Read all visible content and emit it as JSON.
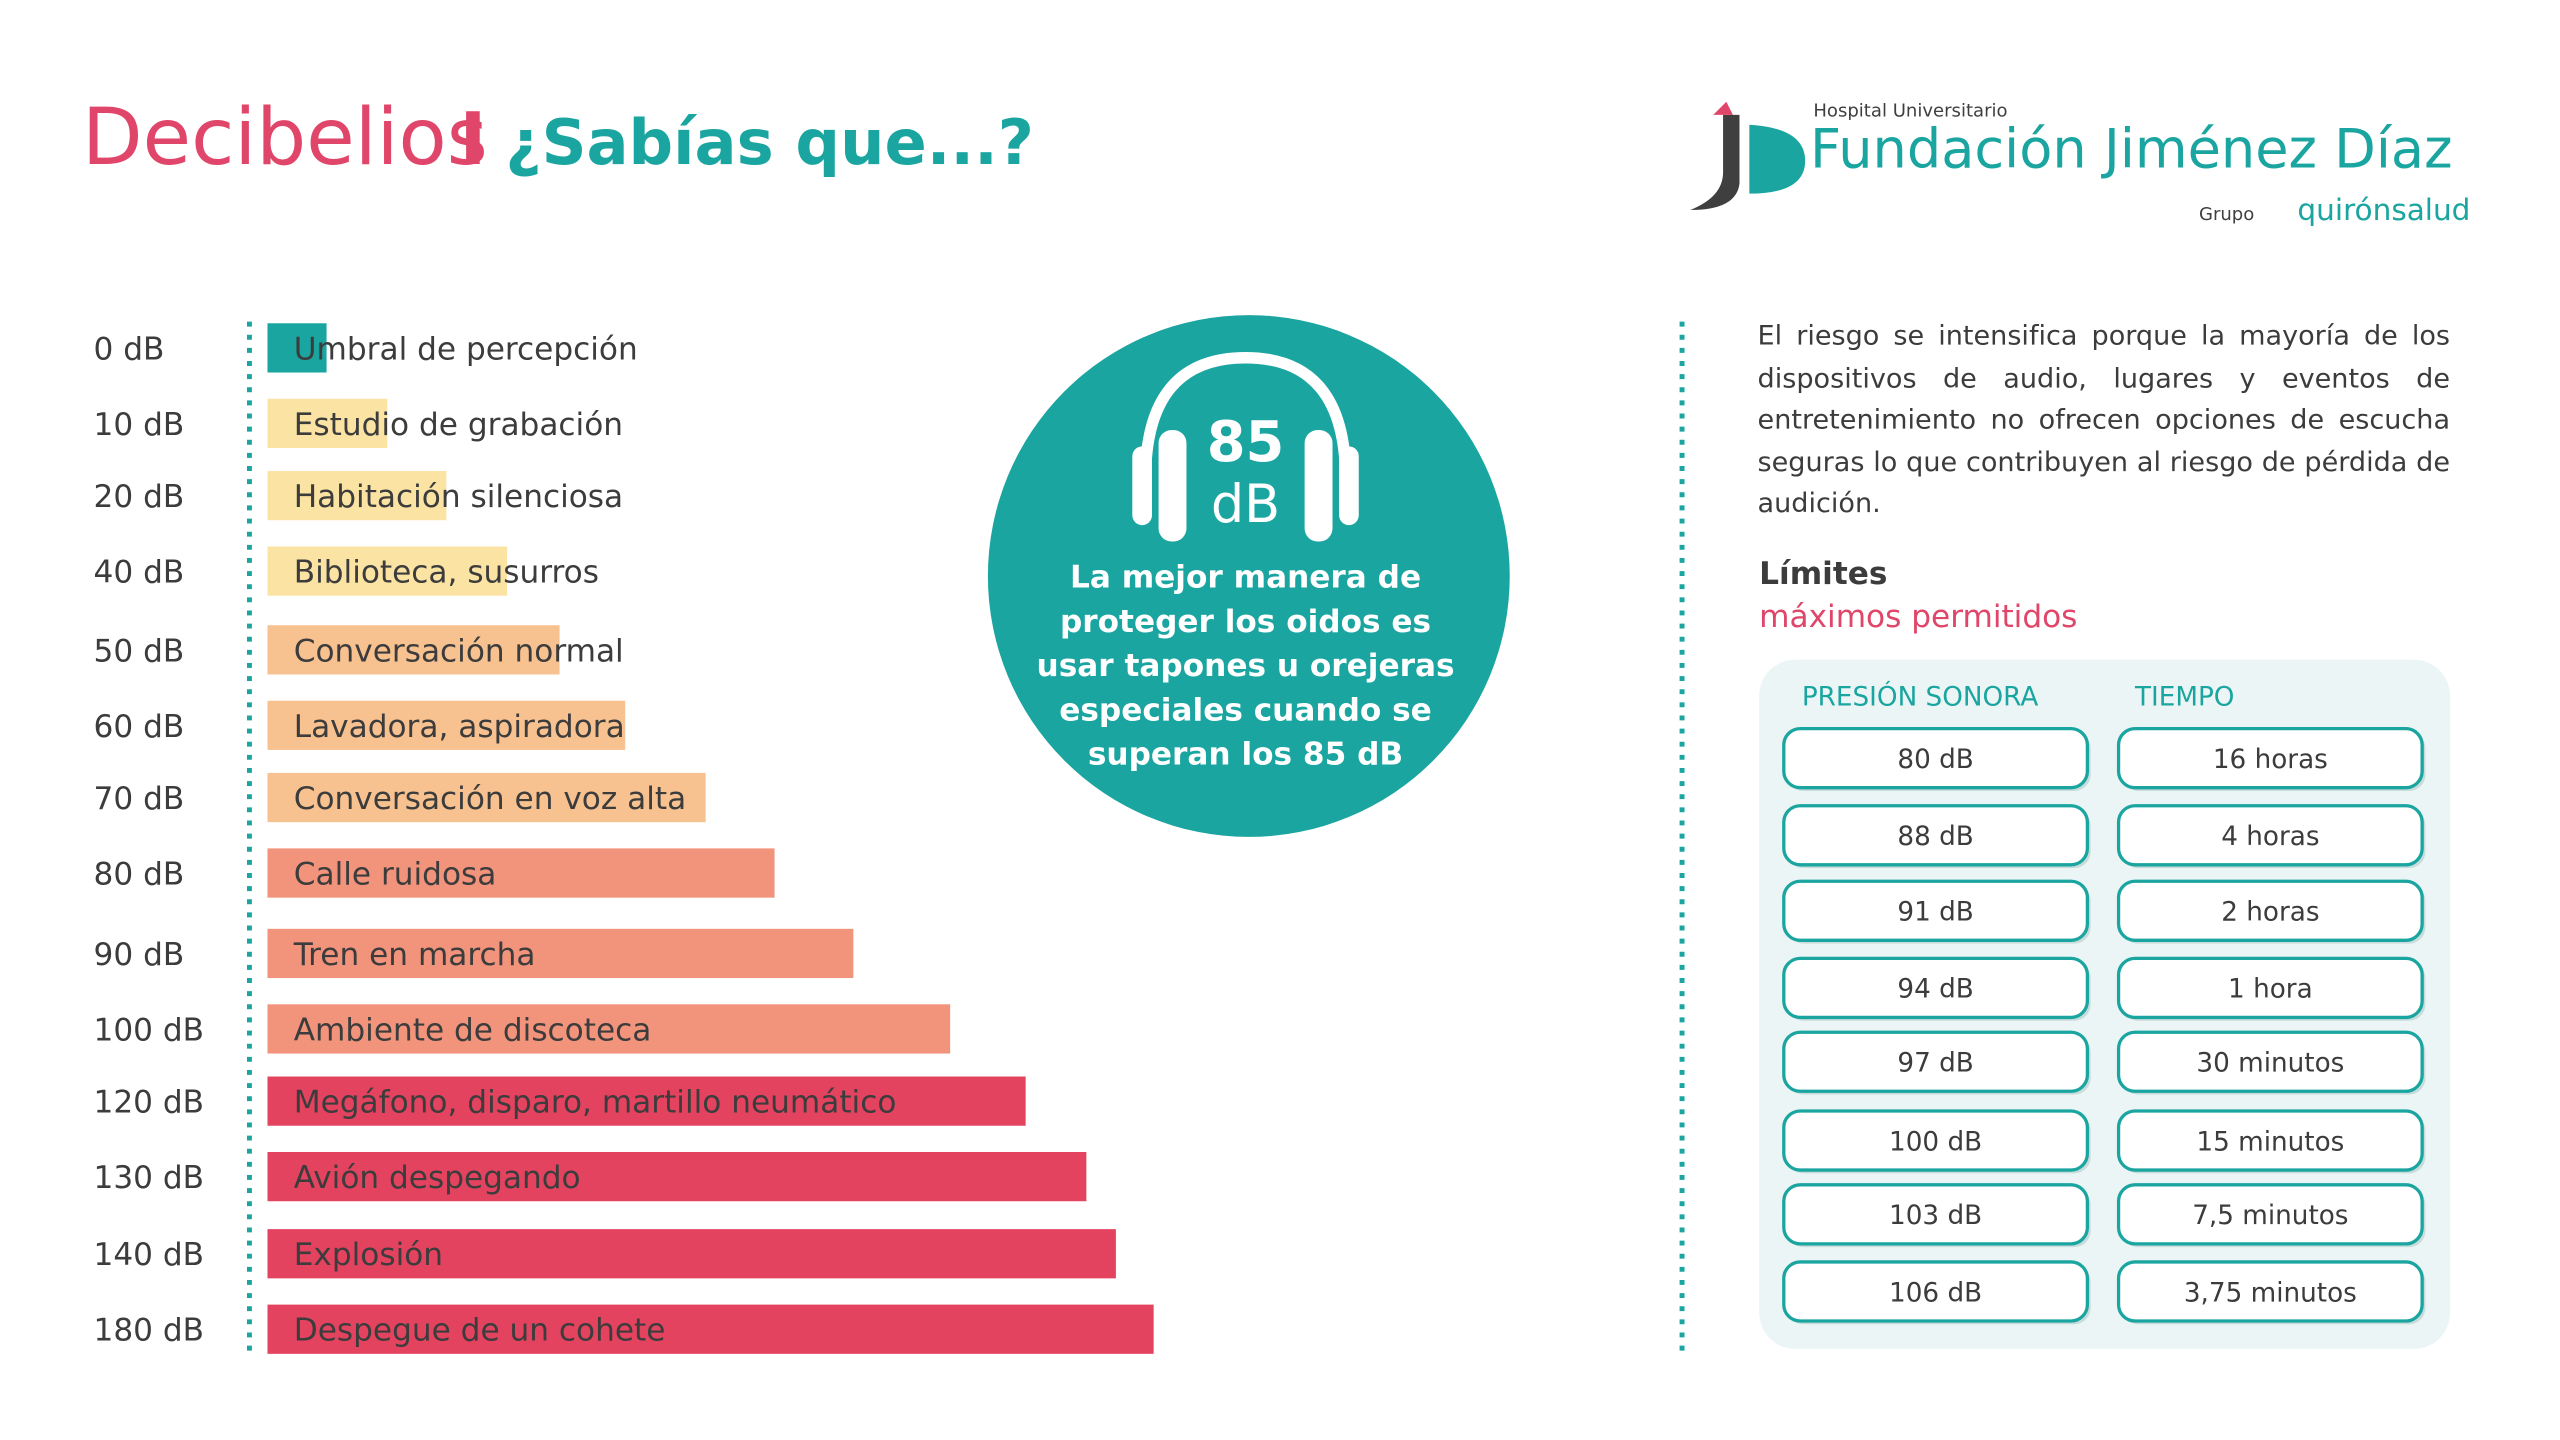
{
  "header": {
    "title": "Decibelios",
    "separator": "I",
    "subtitle": "¿Sabías que...?"
  },
  "logo": {
    "line1": "Hospital Universitario",
    "name": "Fundación Jiménez Díaz",
    "group": "Grupo",
    "brand": "quirónsalud"
  },
  "levels": [
    {
      "level": "0 dB",
      "label": "Umbral de percepción"
    },
    {
      "level": "10 dB",
      "label": "Estudio de grabación"
    },
    {
      "level": "20 dB",
      "label": "Habitación silenciosa"
    },
    {
      "level": "40 dB",
      "label": "Biblioteca, susurros"
    },
    {
      "level": "50 dB",
      "label": "Conversación normal"
    },
    {
      "level": "60 dB",
      "label": "Lavadora, aspiradora"
    },
    {
      "level": "70 dB",
      "label": "Conversación en voz alta"
    },
    {
      "level": "80 dB",
      "label": "Calle ruidosa"
    },
    {
      "level": "90 dB",
      "label": "Tren en marcha"
    },
    {
      "level": "100 dB",
      "label": "Ambiente de discoteca"
    },
    {
      "level": "120 dB",
      "label": "Megáfono, disparo, martillo neumático"
    },
    {
      "level": "130 dB",
      "label": "Avión despegando"
    },
    {
      "level": "140 dB",
      "label": "Explosión"
    },
    {
      "level": "180 dB",
      "label": "Despegue de un cohete"
    }
  ],
  "callout": {
    "value": "85",
    "unit": "dB",
    "lines": [
      "La mejor manera de",
      "proteger los oidos es",
      "usar tapones u orejeras",
      "especiales cuando se",
      "superan los 85 dB"
    ]
  },
  "info": {
    "text": "El riesgo se intensifica porque la mayoría de los dispositivos de audio, lugares y eventos de entretenimiento no ofrecen opciones de escucha seguras lo que contribuyen al riesgo de pérdida de audición.",
    "limits_title": "Límites",
    "limits_subtitle": "máximos permitidos"
  },
  "table": {
    "headers": [
      "PRESIÓN SONORA",
      "TIEMPO"
    ],
    "rows": [
      [
        "80 dB",
        "16 horas"
      ],
      [
        "88 dB",
        "4 horas"
      ],
      [
        "91 dB",
        "2 horas"
      ],
      [
        "94 dB",
        "1 hora"
      ],
      [
        "97 dB",
        "30 minutos"
      ],
      [
        "100 dB",
        "15 minutos"
      ],
      [
        "103 dB",
        "7,5 minutos"
      ],
      [
        "106 dB",
        "3,75 minutos"
      ]
    ]
  }
}
